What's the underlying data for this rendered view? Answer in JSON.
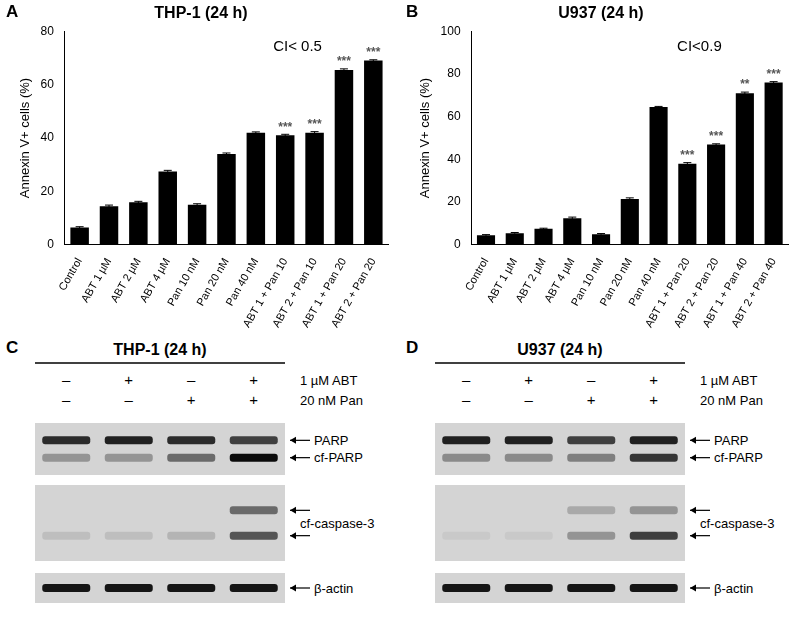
{
  "chart_data": [
    {
      "type": "bar",
      "panel": "A",
      "title": "THP-1 (24 h)",
      "annotation": "CI< 0.5",
      "y_label": "Annexin V+ cells (%)",
      "categories": [
        "Control",
        "ABT 1 µM",
        "ABT 2 µM",
        "ABT 4 µM",
        "Pan 10 nM",
        "Pan 20 nM",
        "Pan 40 nM",
        "ABT 1 + Pan 10",
        "ABT 2 + Pan 10",
        "ABT 1 + Pan 20",
        "ABT 2 + Pan 20"
      ],
      "values": [
        6.5,
        14.5,
        16,
        27.5,
        15,
        34,
        42,
        41,
        42,
        65.5,
        69
      ],
      "errors": [
        0.3,
        0.4,
        0.3,
        0.4,
        0.4,
        0.4,
        0.3,
        0.4,
        0.4,
        0.4,
        0.3
      ],
      "significance": [
        null,
        null,
        null,
        null,
        null,
        null,
        null,
        "***",
        "***",
        "***",
        "***"
      ],
      "color": "#000000",
      "ylim": [
        0,
        80
      ],
      "yticks": [
        0,
        20,
        40,
        60,
        80
      ],
      "grid": false
    },
    {
      "type": "bar",
      "panel": "B",
      "title": "U937 (24 h)",
      "annotation": "CI<0.9",
      "y_label": "Annexin V+ cells (%)",
      "categories": [
        "Control",
        "ABT 1 µM",
        "ABT 2 µM",
        "ABT 4 µM",
        "Pan 10 nM",
        "Pan 20 nM",
        "Pan 40 nM",
        "ABT 1 + Pan 20",
        "ABT 2 + Pan 20",
        "ABT 1 + Pan 40",
        "ABT 2 + Pan 40"
      ],
      "values": [
        4.5,
        5.5,
        7.5,
        12.5,
        5,
        21.5,
        64.5,
        38,
        47,
        71,
        76
      ],
      "errors": [
        0.3,
        0.3,
        0.3,
        0.5,
        0.3,
        0.5,
        0.3,
        0.5,
        0.3,
        0.5,
        0.4
      ],
      "significance": [
        null,
        null,
        null,
        null,
        null,
        null,
        null,
        "***",
        "***",
        "**",
        "***"
      ],
      "color": "#000000",
      "ylim": [
        0,
        100
      ],
      "yticks": [
        0,
        20,
        40,
        60,
        80,
        100
      ],
      "grid": false
    }
  ],
  "blots": [
    {
      "panel": "C",
      "title": "THP-1 (24 h)",
      "treatments": [
        {
          "label": "1 µM ABT",
          "signs": [
            "–",
            "+",
            "–",
            "+"
          ]
        },
        {
          "label": "20 nM Pan",
          "signs": [
            "–",
            "–",
            "+",
            "+"
          ]
        }
      ],
      "boxes": [
        {
          "bands": [
            {
              "label": "PARP",
              "intensity": [
                0.8,
                0.85,
                0.8,
                0.7
              ]
            },
            {
              "label": "cf-PARP",
              "intensity": [
                0.3,
                0.3,
                0.5,
                0.95
              ]
            }
          ]
        },
        {
          "label": "cf-caspase-3",
          "bands": [
            {
              "intensity": [
                0,
                0,
                0,
                0.5
              ]
            },
            {
              "intensity": [
                0.1,
                0.1,
                0.15,
                0.6
              ]
            }
          ]
        },
        {
          "bands": [
            {
              "label": "β-actin",
              "intensity": [
                0.9,
                0.9,
                0.9,
                0.9
              ]
            }
          ]
        }
      ]
    },
    {
      "panel": "D",
      "title": "U937 (24 h)",
      "treatments": [
        {
          "label": "1 µM ABT",
          "signs": [
            "–",
            "+",
            "–",
            "+"
          ]
        },
        {
          "label": "20 nM Pan",
          "signs": [
            "–",
            "–",
            "+",
            "+"
          ]
        }
      ],
      "boxes": [
        {
          "bands": [
            {
              "label": "PARP",
              "intensity": [
                0.85,
                0.85,
                0.7,
                0.85
              ]
            },
            {
              "label": "cf-PARP",
              "intensity": [
                0.35,
                0.35,
                0.4,
                0.75
              ]
            }
          ]
        },
        {
          "label": "cf-caspase-3",
          "bands": [
            {
              "intensity": [
                0,
                0,
                0.2,
                0.3
              ]
            },
            {
              "intensity": [
                0.05,
                0.05,
                0.3,
                0.7
              ]
            }
          ]
        },
        {
          "bands": [
            {
              "label": "β-actin",
              "intensity": [
                0.9,
                0.9,
                0.9,
                0.9
              ]
            }
          ]
        }
      ]
    }
  ]
}
